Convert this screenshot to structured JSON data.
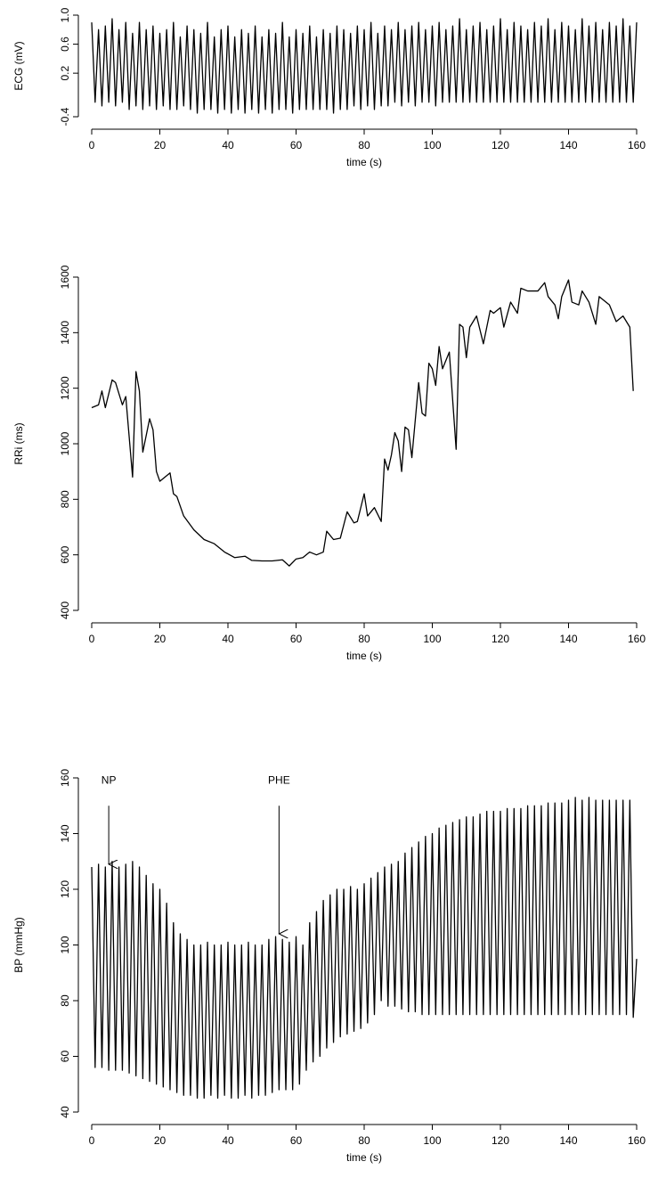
{
  "chart_data": [
    {
      "type": "line",
      "ylabel": "ECG (mV)",
      "xlabel": "time (s)",
      "xlim": [
        0,
        160
      ],
      "xticks": [
        0,
        20,
        40,
        60,
        80,
        100,
        120,
        140,
        160
      ],
      "ylim": [
        -0.4,
        1.0
      ],
      "yticks": [
        -0.4,
        0.2,
        0.6,
        {
          "value": 1,
          "label": "1.0"
        }
      ],
      "series": [
        {
          "color": "#000000",
          "x": [
            0,
            1,
            2,
            3,
            4,
            5,
            6,
            7,
            8,
            9,
            10,
            11,
            12,
            13,
            14,
            15,
            16,
            17,
            18,
            19,
            20,
            21,
            22,
            23,
            24,
            25,
            26,
            27,
            28,
            29,
            30,
            31,
            32,
            33,
            34,
            35,
            36,
            37,
            38,
            39,
            40,
            41,
            42,
            43,
            44,
            45,
            46,
            47,
            48,
            49,
            50,
            51,
            52,
            53,
            54,
            55,
            56,
            57,
            58,
            59,
            60,
            61,
            62,
            63,
            64,
            65,
            66,
            67,
            68,
            69,
            70,
            71,
            72,
            73,
            74,
            75,
            76,
            77,
            78,
            79,
            80,
            81,
            82,
            83,
            84,
            85,
            86,
            87,
            88,
            89,
            90,
            91,
            92,
            93,
            94,
            95,
            96,
            97,
            98,
            99,
            100,
            101,
            102,
            103,
            104,
            105,
            106,
            107,
            108,
            109,
            110,
            111,
            112,
            113,
            114,
            115,
            116,
            117,
            118,
            119,
            120,
            121,
            122,
            123,
            124,
            125,
            126,
            127,
            128,
            129,
            130,
            131,
            132,
            133,
            134,
            135,
            136,
            137,
            138,
            139,
            140,
            141,
            142,
            143,
            144,
            145,
            146,
            147,
            148,
            149,
            150,
            151,
            152,
            153,
            154,
            155,
            156,
            157,
            158,
            159,
            160
          ],
          "values": [
            0.9,
            -0.2,
            0.8,
            -0.25,
            0.85,
            -0.2,
            0.95,
            -0.25,
            0.8,
            -0.2,
            0.9,
            -0.3,
            0.75,
            -0.25,
            0.9,
            -0.3,
            0.8,
            -0.25,
            0.85,
            -0.3,
            0.75,
            -0.25,
            0.8,
            -0.3,
            0.9,
            -0.3,
            0.7,
            -0.25,
            0.85,
            -0.3,
            0.8,
            -0.35,
            0.75,
            -0.3,
            0.9,
            -0.3,
            0.7,
            -0.35,
            0.8,
            -0.3,
            0.85,
            -0.35,
            0.7,
            -0.3,
            0.8,
            -0.35,
            0.75,
            -0.3,
            0.85,
            -0.35,
            0.7,
            -0.3,
            0.8,
            -0.35,
            0.75,
            -0.3,
            0.9,
            -0.3,
            0.7,
            -0.35,
            0.8,
            -0.3,
            0.75,
            -0.3,
            0.85,
            -0.3,
            0.7,
            -0.3,
            0.8,
            -0.3,
            0.75,
            -0.35,
            0.85,
            -0.3,
            0.8,
            -0.3,
            0.75,
            -0.25,
            0.85,
            -0.3,
            0.8,
            -0.25,
            0.9,
            -0.3,
            0.75,
            -0.25,
            0.85,
            -0.25,
            0.8,
            -0.2,
            0.9,
            -0.25,
            0.8,
            -0.2,
            0.85,
            -0.25,
            0.9,
            -0.2,
            0.8,
            -0.2,
            0.85,
            -0.25,
            0.9,
            -0.2,
            0.8,
            -0.2,
            0.85,
            -0.2,
            0.95,
            -0.2,
            0.8,
            -0.2,
            0.85,
            -0.2,
            0.9,
            -0.2,
            0.8,
            -0.2,
            0.85,
            -0.2,
            0.95,
            -0.2,
            0.8,
            -0.2,
            0.9,
            -0.2,
            0.85,
            -0.2,
            0.8,
            -0.2,
            0.9,
            -0.2,
            0.85,
            -0.2,
            0.95,
            -0.2,
            0.8,
            -0.2,
            0.9,
            -0.2,
            0.85,
            -0.2,
            0.8,
            -0.2,
            0.95,
            -0.2,
            0.85,
            -0.2,
            0.9,
            -0.2,
            0.8,
            -0.2,
            0.9,
            -0.2,
            0.85,
            -0.2,
            0.95,
            -0.2,
            0.85,
            -0.2,
            0.9
          ]
        }
      ]
    },
    {
      "type": "line",
      "ylabel": "RRi (ms)",
      "xlabel": "time (s)",
      "xlim": [
        0,
        160
      ],
      "xticks": [
        0,
        20,
        40,
        60,
        80,
        100,
        120,
        140,
        160
      ],
      "ylim": [
        400,
        1600
      ],
      "yticks": [
        400,
        600,
        800,
        1000,
        1200,
        1400,
        1600
      ],
      "series": [
        {
          "color": "#000000",
          "x": [
            0,
            2,
            3,
            4,
            6,
            7,
            9,
            10,
            12,
            13,
            14,
            15,
            17,
            18,
            19,
            20,
            23,
            24,
            25,
            27,
            30,
            33,
            36,
            39,
            42,
            45,
            47,
            50,
            53,
            56,
            58,
            60,
            62,
            64,
            66,
            68,
            69,
            71,
            73,
            75,
            77,
            78,
            80,
            81,
            83,
            85,
            86,
            87,
            88,
            89,
            90,
            91,
            92,
            93,
            94,
            96,
            97,
            98,
            99,
            100,
            101,
            102,
            103,
            105,
            107,
            108,
            109,
            110,
            111,
            113,
            115,
            117,
            118,
            120,
            121,
            123,
            124,
            125,
            126,
            128,
            131,
            133,
            134,
            136,
            137,
            138,
            140,
            141,
            143,
            144,
            146,
            148,
            149,
            152,
            154,
            156,
            158,
            159
          ],
          "values": [
            1130,
            1140,
            1190,
            1130,
            1230,
            1220,
            1140,
            1170,
            880,
            1260,
            1190,
            970,
            1090,
            1050,
            900,
            865,
            895,
            820,
            810,
            740,
            690,
            655,
            640,
            610,
            590,
            595,
            580,
            578,
            578,
            582,
            560,
            585,
            590,
            610,
            600,
            610,
            685,
            655,
            660,
            755,
            715,
            720,
            820,
            740,
            770,
            720,
            945,
            905,
            960,
            1040,
            1010,
            900,
            1060,
            1050,
            950,
            1220,
            1110,
            1100,
            1290,
            1270,
            1210,
            1350,
            1270,
            1330,
            980,
            1430,
            1420,
            1310,
            1420,
            1460,
            1360,
            1480,
            1470,
            1490,
            1420,
            1510,
            1490,
            1470,
            1560,
            1550,
            1550,
            1580,
            1530,
            1500,
            1450,
            1530,
            1590,
            1510,
            1500,
            1550,
            1510,
            1430,
            1530,
            1500,
            1440,
            1460,
            1420,
            1190
          ]
        }
      ]
    },
    {
      "type": "line",
      "ylabel": "BP (mmHg)",
      "xlabel": "time (s)",
      "xlim": [
        0,
        160
      ],
      "xticks": [
        0,
        20,
        40,
        60,
        80,
        100,
        120,
        140,
        160
      ],
      "ylim": [
        40,
        160
      ],
      "yticks": [
        40,
        60,
        80,
        100,
        120,
        140,
        160
      ],
      "annotations": [
        {
          "text": "NP",
          "x": 5,
          "y": 159,
          "arrow_from": 150,
          "arrow_to": 129
        },
        {
          "text": "PHE",
          "x": 55,
          "y": 159,
          "arrow_from": 150,
          "arrow_to": 104
        }
      ],
      "series": [
        {
          "color": "#000000",
          "x": [
            0,
            1,
            2,
            3,
            4,
            5,
            6,
            7,
            8,
            9,
            10,
            11,
            12,
            13,
            14,
            15,
            16,
            17,
            18,
            19,
            20,
            21,
            22,
            23,
            24,
            25,
            26,
            27,
            28,
            29,
            30,
            31,
            32,
            33,
            34,
            35,
            36,
            37,
            38,
            39,
            40,
            41,
            42,
            43,
            44,
            45,
            46,
            47,
            48,
            49,
            50,
            51,
            52,
            53,
            54,
            55,
            56,
            57,
            58,
            59,
            60,
            61,
            62,
            63,
            64,
            65,
            66,
            67,
            68,
            69,
            70,
            71,
            72,
            73,
            74,
            75,
            76,
            77,
            78,
            79,
            80,
            81,
            82,
            83,
            84,
            85,
            86,
            87,
            88,
            89,
            90,
            91,
            92,
            93,
            94,
            95,
            96,
            97,
            98,
            99,
            100,
            101,
            102,
            103,
            104,
            105,
            106,
            107,
            108,
            109,
            110,
            111,
            112,
            113,
            114,
            115,
            116,
            117,
            118,
            119,
            120,
            121,
            122,
            123,
            124,
            125,
            126,
            127,
            128,
            129,
            130,
            131,
            132,
            133,
            134,
            135,
            136,
            137,
            138,
            139,
            140,
            141,
            142,
            143,
            144,
            145,
            146,
            147,
            148,
            149,
            150,
            151,
            152,
            153,
            154,
            155,
            156,
            157,
            158,
            159,
            160
          ],
          "values": [
            128,
            56,
            129,
            56,
            128,
            55,
            130,
            55,
            128,
            55,
            129,
            54,
            130,
            53,
            128,
            52,
            125,
            51,
            122,
            50,
            120,
            49,
            115,
            48,
            108,
            47,
            104,
            46,
            102,
            46,
            100,
            45,
            100,
            45,
            101,
            46,
            100,
            45,
            100,
            46,
            101,
            45,
            100,
            45,
            100,
            46,
            101,
            45,
            100,
            46,
            100,
            46,
            102,
            47,
            103,
            48,
            102,
            48,
            101,
            48,
            103,
            50,
            100,
            55,
            108,
            58,
            112,
            60,
            116,
            63,
            118,
            65,
            120,
            67,
            120,
            68,
            121,
            69,
            120,
            70,
            122,
            72,
            124,
            75,
            126,
            80,
            128,
            78,
            129,
            78,
            130,
            77,
            133,
            76,
            135,
            76,
            137,
            75,
            139,
            75,
            140,
            75,
            142,
            75,
            143,
            75,
            144,
            75,
            145,
            75,
            146,
            75,
            146,
            75,
            147,
            75,
            148,
            75,
            148,
            75,
            148,
            75,
            149,
            75,
            149,
            75,
            149,
            75,
            150,
            75,
            150,
            75,
            150,
            75,
            151,
            75,
            151,
            75,
            151,
            75,
            152,
            75,
            153,
            75,
            152,
            75,
            153,
            75,
            152,
            75,
            152,
            75,
            152,
            75,
            152,
            75,
            152,
            75,
            152,
            74,
            95
          ]
        }
      ]
    }
  ]
}
